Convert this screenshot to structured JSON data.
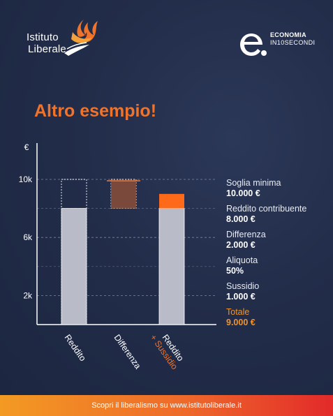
{
  "brand_left": {
    "line1": "Istituto",
    "line2": "Liberale"
  },
  "brand_right": {
    "line1": "ECONOMIA",
    "line2": "IN10SECONDI"
  },
  "title": "Altro esempio!",
  "stats": [
    {
      "label": "Soglia minima",
      "value": "10.000 €",
      "highlight": false
    },
    {
      "label": "Reddito contribuente",
      "value": "8.000 €",
      "highlight": false
    },
    {
      "label": "Differenza",
      "value": "2.000 €",
      "highlight": false
    },
    {
      "label": "Aliquota",
      "value": "50%",
      "highlight": false
    },
    {
      "label": "Sussidio",
      "value": "1.000 €",
      "highlight": false
    },
    {
      "label": "Totale",
      "value": "9.000 €",
      "highlight": true
    }
  ],
  "footer": {
    "text": "Scopri il liberalismo su www.istitutoliberale.it"
  },
  "colors": {
    "background": "#1f2a45",
    "accent": "#f0732b",
    "bar": "#b9bcc8",
    "difference": "#8a4e3a",
    "subsidy": "#ff6a1a"
  },
  "chart_data": {
    "type": "bar",
    "unit_label": "€",
    "ylim": [
      0,
      12500
    ],
    "yticks": [
      {
        "value": 2000,
        "label": "2k"
      },
      {
        "value": 6000,
        "label": "6k"
      },
      {
        "value": 10000,
        "label": "10k"
      }
    ],
    "threshold": 10000,
    "categories": [
      "Reddito",
      "Differenza",
      "Reddito\n+ Sussidio"
    ],
    "bars": [
      {
        "category": "Reddito",
        "base": 0,
        "value": 8000,
        "subsidy": 0
      },
      {
        "category": "Differenza",
        "base": 8000,
        "value": 2000,
        "subsidy": 0
      },
      {
        "category": "Reddito + Sussidio",
        "base": 0,
        "value": 8000,
        "subsidy": 1000
      }
    ],
    "xlabels": [
      {
        "line1": "Reddito",
        "line2": ""
      },
      {
        "line1": "Differenza",
        "line2": ""
      },
      {
        "line1": "Reddito",
        "line2": "+ Sussidio"
      }
    ],
    "grid": true,
    "legend": "none"
  }
}
